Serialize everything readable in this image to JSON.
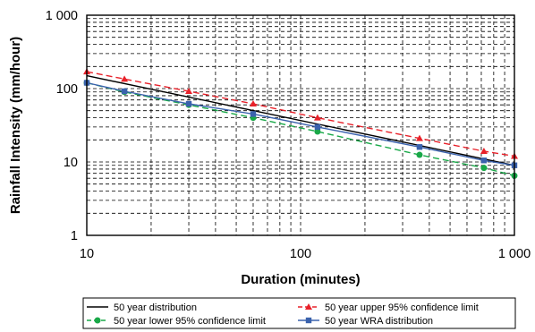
{
  "chart_data": {
    "type": "line",
    "title": "",
    "xlabel": "Duration (minutes)",
    "ylabel": "Rainfall Intensity (mm/hour)",
    "xscale": "log",
    "yscale": "log",
    "xlim": [
      10,
      1000
    ],
    "ylim": [
      1,
      1000
    ],
    "x_ticks": [
      "10",
      "100",
      "1 000"
    ],
    "y_ticks": [
      "1",
      "10",
      "100",
      "1 000"
    ],
    "grid": "dashed minor and major",
    "legend_position": "bottom",
    "series": [
      {
        "name": "50 year distribution",
        "color": "#000000",
        "dash": "solid",
        "marker": "none",
        "x": [
          10,
          1000
        ],
        "y": [
          150,
          9
        ]
      },
      {
        "name": "50 year upper 95% confidence limit",
        "color": "#e8212a",
        "dash": "dashed",
        "marker": "triangle",
        "x": [
          10,
          15,
          30,
          60,
          120,
          360,
          720,
          1000
        ],
        "y": [
          170,
          135,
          92,
          62,
          40,
          21,
          14,
          12
        ]
      },
      {
        "name": "50 year lower 95% confidence limit",
        "color": "#19a848",
        "dash": "dashed",
        "marker": "circle",
        "x": [
          10,
          15,
          30,
          60,
          120,
          360,
          720,
          1000
        ],
        "y": [
          120,
          90,
          60,
          40,
          26,
          12.5,
          8.3,
          6.5
        ]
      },
      {
        "name": "50 year WRA distribution",
        "color": "#3a62ad",
        "dash": "solid",
        "marker": "square",
        "x": [
          10,
          15,
          30,
          60,
          120,
          360,
          720,
          1000
        ],
        "y": [
          120,
          92,
          62,
          45,
          30,
          16,
          10.5,
          9
        ]
      }
    ]
  }
}
